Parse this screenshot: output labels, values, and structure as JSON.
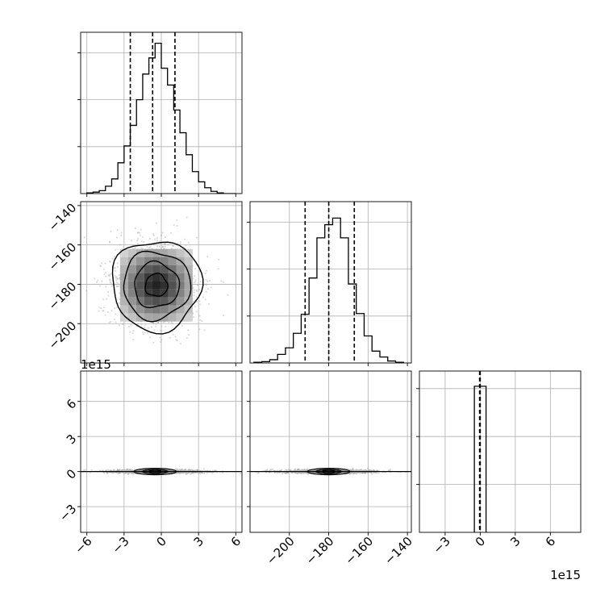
{
  "chart_data": {
    "type": "corner",
    "variables": [
      {
        "range": [
          -6.5,
          6.5
        ],
        "ticks": [
          -6,
          -3,
          0,
          3,
          6
        ],
        "tick_labels": [
          "−6",
          "−3",
          "0",
          "3",
          "6"
        ]
      },
      {
        "range": [
          -220,
          -138
        ],
        "ticks": [
          -200,
          -180,
          -160,
          -140
        ],
        "tick_labels": [
          "−200",
          "−180",
          "−160",
          "−140"
        ]
      },
      {
        "range": [
          -5.2,
          8.6
        ],
        "ticks": [
          -3,
          0,
          3,
          6
        ],
        "tick_labels": [
          "−3",
          "0",
          "3",
          "6"
        ],
        "scale_label": "1e15"
      }
    ],
    "histograms": [
      {
        "variable": 0,
        "bin_edges": [
          -6,
          -5.5,
          -5,
          -4.5,
          -4,
          -3.5,
          -3,
          -2.5,
          -2,
          -1.5,
          -1,
          -0.5,
          0,
          0.5,
          1,
          1.5,
          2,
          2.5,
          3,
          3.5,
          4,
          4.5,
          5,
          5.5,
          6
        ],
        "counts": [
          1,
          2,
          4,
          10,
          20,
          42,
          65,
          93,
          128,
          163,
          185,
          205,
          171,
          148,
          114,
          83,
          53,
          30,
          16,
          8,
          3,
          1,
          0,
          0
        ],
        "quantiles": [
          -2.5,
          -0.7,
          1.1
        ],
        "ymax": 220
      },
      {
        "variable": 1,
        "bin_edges": [
          -218,
          -214,
          -210,
          -206,
          -202,
          -198,
          -194,
          -190,
          -186,
          -182,
          -178,
          -174,
          -170,
          -166,
          -162,
          -158,
          -154,
          -150,
          -146,
          -142
        ],
        "counts": [
          1,
          2,
          5,
          13,
          23,
          45,
          74,
          129,
          190,
          210,
          220,
          190,
          120,
          75,
          41,
          18,
          9,
          3,
          1
        ],
        "quantiles": [
          -192,
          -180,
          -167
        ],
        "ymax": 245
      },
      {
        "variable": 2,
        "bin_edges": [
          -0.5,
          0,
          0.5
        ],
        "counts": [
          240,
          240
        ],
        "quantiles": [
          -0.05,
          0
        ],
        "ymax": 265
      }
    ],
    "scatter_panels": [
      {
        "x": 0,
        "y": 1,
        "type": "density_contour",
        "center": [
          -0.4,
          -180.5
        ],
        "spread": [
          1.8,
          11.5
        ],
        "contour_radii_sigma": [
          0.5,
          1.0,
          1.5,
          2.0
        ]
      },
      {
        "x": 0,
        "y": 2,
        "type": "density_contour",
        "center": [
          -0.5,
          0
        ],
        "spread": [
          1.9,
          0.08
        ]
      },
      {
        "x": 1,
        "y": 2,
        "type": "density_contour",
        "center": [
          -180,
          0
        ],
        "spread": [
          12,
          0.08
        ]
      }
    ],
    "grid": true,
    "quantile_line_style": "dashed",
    "contour_color": "#000000",
    "histogram_color": "#000000"
  }
}
